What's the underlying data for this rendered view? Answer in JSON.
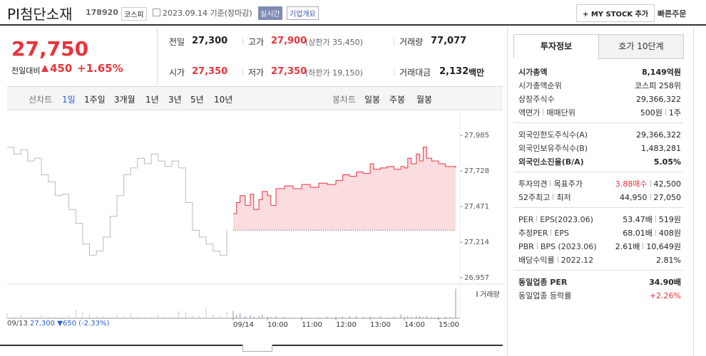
{
  "header": {
    "name": "PI첨단소재",
    "code": "178920",
    "market": "코스피",
    "date": "2023.09.14 기준(장마감)",
    "realtime": "실시간",
    "overview": "기업개요",
    "mystock": "+ MY STOCK 추가",
    "quick_order": "빠른주문"
  },
  "quote": {
    "price": "27,750",
    "change_label": "전일대비",
    "change": "450",
    "rate": "+1.65%"
  },
  "stats": [
    {
      "label": "전일",
      "value": "27,300"
    },
    {
      "label": "고가",
      "value": "27,900",
      "note": "(상한가 35,450)",
      "color": "#e8343c"
    },
    {
      "label": "거래량",
      "value": "77,077"
    },
    {
      "label": "시가",
      "value": "27,350",
      "color": "#e8343c"
    },
    {
      "label": "저가",
      "value": "27,350",
      "note": "(하한가 19,150)",
      "color": "#e8343c"
    },
    {
      "label": "거래대금",
      "value": "2,132",
      "unit": "백만"
    }
  ],
  "tabs": {
    "line_label": "선차트",
    "periods": [
      "1일",
      "1주일",
      "3개월",
      "1년",
      "3년",
      "5년",
      "10년"
    ],
    "candle_label": "봉차트",
    "candles": [
      "일봉",
      "주봉",
      "월봉"
    ]
  },
  "chart": {
    "type": "line",
    "volume_label": "거래량",
    "ylim": [
      26916,
      28140
    ],
    "yticks": [
      {
        "value": 27985,
        "label": "27,985"
      },
      {
        "value": 27728,
        "label": "27,728"
      },
      {
        "value": 27471,
        "label": "27,471"
      },
      {
        "value": 27214,
        "label": "27,214"
      },
      {
        "value": 26957,
        "label": "26,957"
      }
    ],
    "base": 27300,
    "volume_ylim": [
      0,
      13000
    ],
    "colors": {
      "prev": "#bbbbbb",
      "today": "#e8343c",
      "fill": "#fbdcdf",
      "volume_prev": "#cccccc",
      "volume_today": "#8a8fc9"
    },
    "prev_day": {
      "label": "09/13",
      "values": [
        27900,
        27850,
        27880,
        27800,
        27820,
        27700,
        27650,
        27550,
        27560,
        27450,
        27350,
        27200,
        27120,
        27150,
        27250,
        27400,
        27550,
        27700,
        27750,
        27820,
        27780,
        27850,
        27800,
        27760,
        27800,
        27750,
        27500,
        27300,
        27250,
        27200,
        27150,
        27120,
        27300
      ],
      "volume": [
        2000,
        900,
        1500,
        600,
        800,
        1200,
        700,
        500,
        900,
        1100,
        3500,
        2500,
        1800,
        900,
        700,
        600,
        1300,
        900,
        2200,
        800,
        600,
        700,
        1500,
        900,
        600,
        3000,
        2500,
        1200,
        900,
        4000,
        1500,
        1000,
        2600
      ]
    },
    "today": {
      "xlim": [
        9,
        15.5
      ],
      "xticks": [
        {
          "value": 9,
          "label": "09/14"
        },
        {
          "value": 10,
          "label": "10:00"
        },
        {
          "value": 11,
          "label": "11:00"
        },
        {
          "value": 12,
          "label": "12:00"
        },
        {
          "value": 13,
          "label": "13:00"
        },
        {
          "value": 14,
          "label": "14:00"
        },
        {
          "value": 15,
          "label": "15:00"
        }
      ],
      "x": [
        9.0,
        9.1,
        9.2,
        9.35,
        9.5,
        9.6,
        9.75,
        9.85,
        10.0,
        10.1,
        10.25,
        10.5,
        10.75,
        11.0,
        11.25,
        11.5,
        11.75,
        12.0,
        12.2,
        12.4,
        12.6,
        12.8,
        13.0,
        13.1,
        13.3,
        13.5,
        13.7,
        13.9,
        14.0,
        14.1,
        14.2,
        14.35,
        14.45,
        14.55,
        14.65,
        14.8,
        15.0,
        15.2,
        15.35,
        15.5
      ],
      "values": [
        27420,
        27500,
        27550,
        27480,
        27560,
        27450,
        27520,
        27580,
        27550,
        27480,
        27600,
        27620,
        27600,
        27630,
        27610,
        27640,
        27630,
        27660,
        27700,
        27690,
        27720,
        27710,
        27780,
        27740,
        27750,
        27760,
        27740,
        27760,
        27750,
        27820,
        27780,
        27850,
        27800,
        27900,
        27820,
        27800,
        27780,
        27760,
        27760,
        27750
      ],
      "volume": [
        3000,
        1500,
        2000,
        800,
        1200,
        600,
        900,
        1500,
        700,
        500,
        800,
        600,
        400,
        500,
        300,
        400,
        600,
        500,
        700,
        900,
        1000,
        600,
        800,
        500,
        700,
        400,
        600,
        1500,
        700,
        900,
        600,
        800,
        1000,
        500,
        900,
        400,
        600,
        700,
        500,
        12000
      ]
    }
  },
  "footer": {
    "prev_close": "27,300",
    "change": "▼650",
    "rate": "(-2.33%)"
  },
  "invest": {
    "tabs": [
      "투자정보",
      "호가 10단계"
    ],
    "sections": [
      [
        {
          "labels": [
            "시가총액"
          ],
          "values": [
            "8,149억원"
          ],
          "strong": true
        },
        {
          "labels": [
            "시가총액순위"
          ],
          "values": [
            "코스피 258위"
          ]
        },
        {
          "labels": [
            "상장주식수"
          ],
          "values": [
            "29,366,322"
          ]
        },
        {
          "labels": [
            "액면가",
            "매매단위"
          ],
          "values": [
            "500원",
            "1주"
          ]
        }
      ],
      [
        {
          "labels": [
            "외국인한도주식수(A)"
          ],
          "values": [
            "29,366,322"
          ]
        },
        {
          "labels": [
            "외국인보유주식수(B)"
          ],
          "values": [
            "1,483,281"
          ]
        },
        {
          "labels": [
            "외국인소진율(B/A)"
          ],
          "values": [
            "5.05%"
          ],
          "strong": true
        }
      ],
      [
        {
          "labels": [
            "투자의견",
            "목표주가"
          ],
          "values": [
            "3.88매수",
            "42,500"
          ],
          "color": "#e8343c"
        },
        {
          "labels": [
            "52주최고",
            "최저"
          ],
          "values": [
            "44,950",
            "27,050"
          ]
        }
      ],
      [
        {
          "labels": [
            "PER",
            "EPS(2023.06)"
          ],
          "values": [
            "53.47배",
            "519원"
          ]
        },
        {
          "labels": [
            "추정PER",
            "EPS"
          ],
          "values": [
            "68.01배",
            "408원"
          ]
        },
        {
          "labels": [
            "PBR",
            "BPS (2023.06)"
          ],
          "values": [
            "2.61배",
            "10,649원"
          ]
        },
        {
          "labels": [
            "배당수익률",
            "2022.12"
          ],
          "values": [
            "2.81%"
          ]
        }
      ],
      [
        {
          "labels": [
            "동일업종 PER"
          ],
          "values": [
            "34.90배"
          ],
          "strong": true
        },
        {
          "labels": [
            "동일업종 등락률"
          ],
          "values": [
            "+2.26%"
          ],
          "color": "#e8343c"
        }
      ]
    ]
  }
}
